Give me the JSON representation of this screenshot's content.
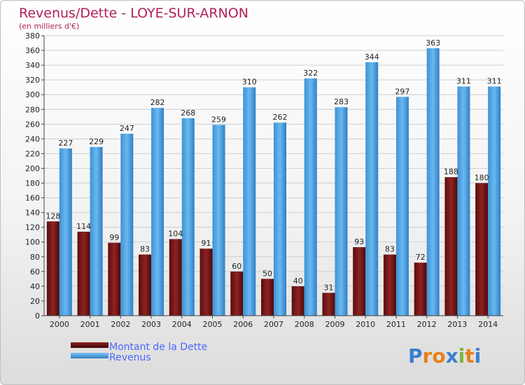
{
  "chart_data": {
    "type": "bar",
    "title": "Revenus/Dette - LOYE-SUR-ARNON",
    "subtitle": "(en milliers d'€)",
    "xlabel": "",
    "ylabel": "",
    "ylim": [
      0,
      380
    ],
    "ytick_step": 20,
    "grid": true,
    "legend_placement": "bottom-left",
    "categories": [
      "2000",
      "2001",
      "2002",
      "2003",
      "2004",
      "2005",
      "2006",
      "2007",
      "2008",
      "2009",
      "2010",
      "2011",
      "2012",
      "2013",
      "2014"
    ],
    "series": [
      {
        "name": "Montant de la Dette",
        "color": "#7a1515",
        "values": [
          128,
          114,
          99,
          83,
          104,
          91,
          60,
          50,
          40,
          31,
          93,
          83,
          72,
          188,
          180
        ]
      },
      {
        "name": "Revenus",
        "color": "#4aa3e6",
        "values": [
          227,
          229,
          247,
          282,
          268,
          259,
          310,
          262,
          322,
          283,
          344,
          297,
          363,
          311,
          311
        ]
      }
    ]
  },
  "logo": {
    "text": "Proxiti",
    "letter_colors": [
      "#3a7fd0",
      "#e8801a",
      "#e8801a",
      "#3a7fd0",
      "#7ab83a",
      "#e8801a",
      "#3a7fd0"
    ]
  }
}
